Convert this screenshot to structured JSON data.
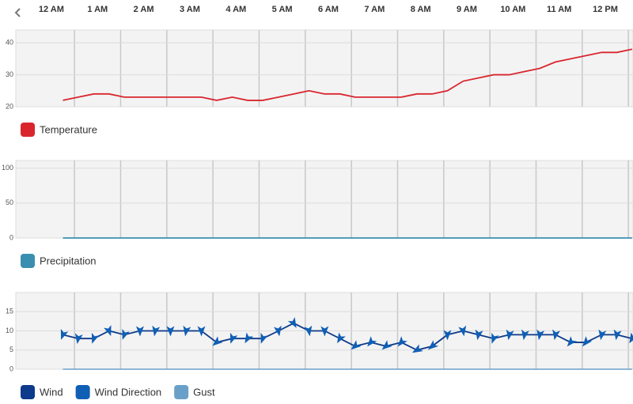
{
  "chart_data": [
    {
      "type": "line",
      "xlim": [
        -0.77,
        12.6
      ],
      "xticks": [
        {
          "value": 0,
          "label": "12 AM"
        },
        {
          "value": 1,
          "label": "1 AM"
        },
        {
          "value": 2,
          "label": "2 AM"
        },
        {
          "value": 3,
          "label": "3 AM"
        },
        {
          "value": 4,
          "label": "4 AM"
        },
        {
          "value": 5,
          "label": "5 AM"
        },
        {
          "value": 6,
          "label": "6 AM"
        },
        {
          "value": 7,
          "label": "7 AM"
        },
        {
          "value": 8,
          "label": "8 AM"
        },
        {
          "value": 9,
          "label": "9 AM"
        },
        {
          "value": 10,
          "label": "10 AM"
        },
        {
          "value": 11,
          "label": "11 AM"
        },
        {
          "value": 12,
          "label": "12 PM"
        }
      ],
      "x": [
        0.25,
        0.58,
        0.92,
        1.25,
        1.58,
        1.92,
        2.25,
        2.58,
        2.92,
        3.25,
        3.58,
        3.92,
        4.25,
        4.58,
        4.92,
        5.25,
        5.58,
        5.92,
        6.25,
        6.58,
        6.92,
        7.25,
        7.58,
        7.92,
        8.25,
        8.58,
        8.92,
        9.25,
        9.58,
        9.92,
        10.25,
        10.58,
        10.92,
        11.25,
        11.58,
        11.92,
        12.25,
        12.58
      ],
      "ylim": [
        20,
        44
      ],
      "yticks": [
        20,
        30,
        40
      ],
      "grid": true,
      "series": [
        {
          "name": "Temperature",
          "color": "#d9262e",
          "values": [
            22,
            23,
            24,
            24,
            23,
            23,
            23,
            23,
            23,
            23,
            22,
            23,
            22,
            22,
            23,
            24,
            25,
            24,
            24,
            23,
            23,
            23,
            23,
            24,
            24,
            25,
            28,
            29,
            30,
            30,
            31,
            32,
            34,
            35,
            36,
            37,
            37,
            38
          ]
        }
      ]
    },
    {
      "type": "line",
      "xlim": [
        -0.77,
        12.6
      ],
      "x": [
        0.25,
        0.58,
        0.92,
        1.25,
        1.58,
        1.92,
        2.25,
        2.58,
        2.92,
        3.25,
        3.58,
        3.92,
        4.25,
        4.58,
        4.92,
        5.25,
        5.58,
        5.92,
        6.25,
        6.58,
        6.92,
        7.25,
        7.58,
        7.92,
        8.25,
        8.58,
        8.92,
        9.25,
        9.58,
        9.92,
        10.25,
        10.58,
        10.92,
        11.25,
        11.58,
        11.92,
        12.25,
        12.58
      ],
      "ylim": [
        0,
        111
      ],
      "yticks": [
        0,
        50,
        100
      ],
      "grid": true,
      "series": [
        {
          "name": "Precipitation",
          "color": "#3a8fb0",
          "values": [
            0,
            0,
            0,
            0,
            0,
            0,
            0,
            0,
            0,
            0,
            0,
            0,
            0,
            0,
            0,
            0,
            0,
            0,
            0,
            0,
            0,
            0,
            0,
            0,
            0,
            0,
            0,
            0,
            0,
            0,
            0,
            0,
            0,
            0,
            0,
            0,
            0,
            0
          ]
        }
      ]
    },
    {
      "type": "wind",
      "xlim": [
        -0.77,
        12.6
      ],
      "x": [
        0.25,
        0.58,
        0.92,
        1.25,
        1.58,
        1.92,
        2.25,
        2.58,
        2.92,
        3.25,
        3.58,
        3.92,
        4.25,
        4.58,
        4.92,
        5.25,
        5.58,
        5.92,
        6.25,
        6.58,
        6.92,
        7.25,
        7.58,
        7.92,
        8.25,
        8.58,
        8.92,
        9.25,
        9.58,
        9.92,
        10.25,
        10.58,
        10.92,
        11.25,
        11.58,
        11.92,
        12.25,
        12.58
      ],
      "ylim": [
        0,
        20
      ],
      "yticks": [
        0,
        5,
        10,
        15
      ],
      "grid": true,
      "series": [
        {
          "name": "Wind",
          "color": "#0d3a8a",
          "values": [
            9,
            8,
            8,
            10,
            9,
            10,
            10,
            10,
            10,
            10,
            7,
            8,
            8,
            8,
            10,
            12,
            10,
            10,
            8,
            6,
            7,
            6,
            7,
            5,
            6,
            9,
            10,
            9,
            8,
            9,
            9,
            9,
            9,
            7,
            7,
            9,
            9,
            8
          ]
        },
        {
          "name": "Wind Direction",
          "color": "#0f5fb5",
          "values": [
            200,
            190,
            200,
            160,
            200,
            180,
            190,
            180,
            190,
            180,
            230,
            200,
            210,
            200,
            170,
            150,
            170,
            180,
            210,
            230,
            220,
            230,
            220,
            240,
            230,
            180,
            170,
            190,
            200,
            190,
            190,
            190,
            190,
            220,
            220,
            190,
            190,
            210
          ]
        },
        {
          "name": "Gust",
          "color": "#6aa0c8",
          "values": [
            0,
            0,
            0,
            0,
            0,
            0,
            0,
            0,
            0,
            0,
            0,
            0,
            0,
            0,
            0,
            0,
            0,
            0,
            0,
            0,
            0,
            0,
            0,
            0,
            0,
            0,
            0,
            0,
            0,
            0,
            0,
            0,
            0,
            0,
            0,
            0,
            0,
            0
          ]
        }
      ]
    }
  ]
}
